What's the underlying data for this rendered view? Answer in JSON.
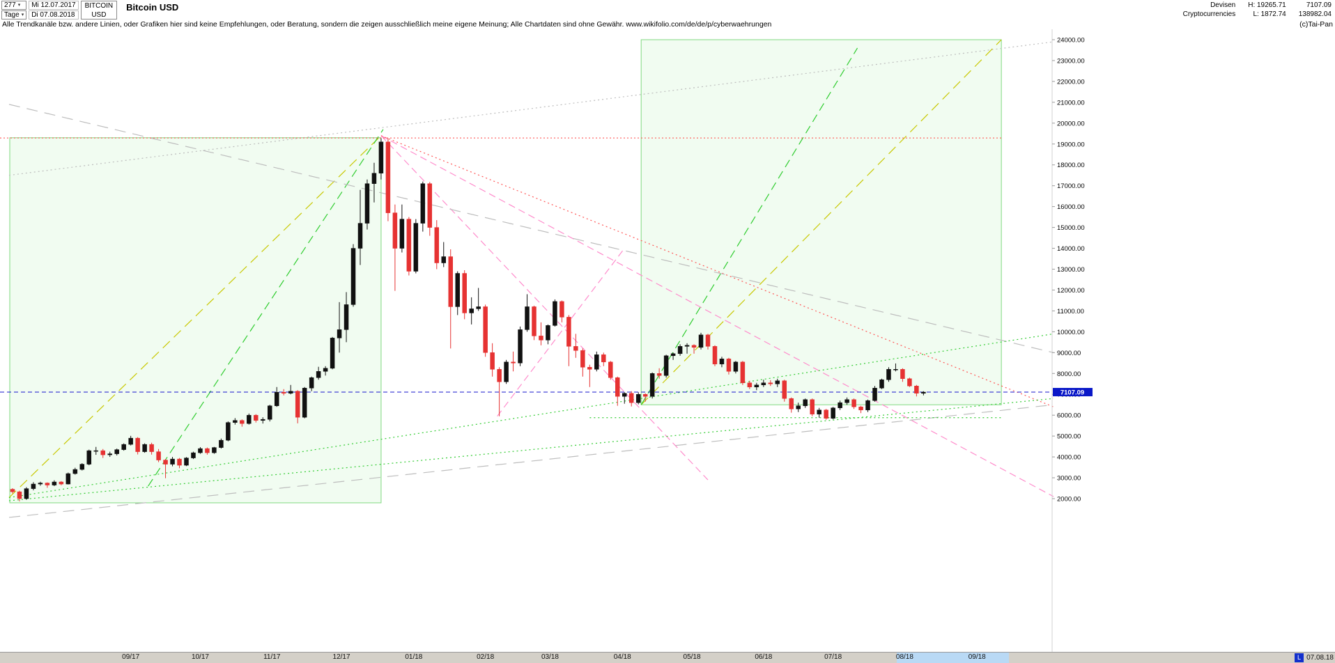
{
  "header": {
    "bars_count": "277",
    "period": "Tage",
    "date_from": "Mi 12.07.2017",
    "date_to": "Di 07.08.2018",
    "symbol": "BITCOIN",
    "currency": "USD",
    "title": "Bitcoin USD",
    "category": "Devisen",
    "subcategory": "Cryptocurrencies",
    "high_label": "H: 19265.71",
    "low_label": "L: 1872.74",
    "last_price": "7107.09",
    "secondary_value": "138982.04",
    "copyright": "(c)Tai-Pan"
  },
  "disclaimer": "Alle Trendkanäle bzw. andere Linien, oder Grafiken hier sind keine Empfehlungen, oder Beratung, sondern die zeigen ausschließlich meine eigene Meinung; Alle Chartdaten sind ohne Gewähr.  www.wikifolio.com/de/de/p/cyberwaehrungen",
  "x_axis": {
    "highlight": {
      "from_i": 127.2,
      "to_i": 143.3
    },
    "last_marker": "L",
    "last_date": "07.08.18"
  },
  "chart_data": {
    "type": "candlestick",
    "title": "Bitcoin USD",
    "high": 19265.71,
    "low": 1872.74,
    "last": 7107.09,
    "ylim": [
      2000,
      24000
    ],
    "y_ticks": [
      24000,
      23000,
      22000,
      21000,
      20000,
      19000,
      18000,
      17000,
      16000,
      15000,
      14000,
      13000,
      12000,
      11000,
      10000,
      9000,
      8000,
      7000,
      6000,
      5000,
      4000,
      3000,
      2000
    ],
    "x_months": [
      {
        "label": "09/17",
        "i": 17.0
      },
      {
        "label": "10/17",
        "i": 27.0
      },
      {
        "label": "11/17",
        "i": 37.3
      },
      {
        "label": "12/17",
        "i": 47.3
      },
      {
        "label": "01/18",
        "i": 57.7
      },
      {
        "label": "02/18",
        "i": 68.0
      },
      {
        "label": "03/18",
        "i": 77.3
      },
      {
        "label": "04/18",
        "i": 87.7
      },
      {
        "label": "05/18",
        "i": 97.7
      },
      {
        "label": "06/18",
        "i": 108.0
      },
      {
        "label": "07/18",
        "i": 118.0
      },
      {
        "label": "08/18",
        "i": 128.3
      },
      {
        "label": "09/18",
        "i": 138.7
      }
    ],
    "colors": {
      "up": "#111111",
      "down": "#e63232",
      "price_line": "#1515cc",
      "resistance": "#ff4444",
      "box_fill": "rgba(80,220,80,0.08)",
      "box_stroke": "#7fd87f",
      "yellow": "#c8c800",
      "green_dash": "#2ecc2e",
      "green_dot": "#33cc33",
      "pink": "#ff8ccc",
      "red_dot": "#ff5555",
      "gray": "#bdbdbd"
    },
    "overlays": {
      "price_line": {
        "value": 7107.09
      },
      "resistance_line": {
        "value": 19290
      },
      "boxes": [
        {
          "i1": -0.4,
          "p1": 19300,
          "i2": 53.0,
          "p2": 1800
        },
        {
          "i1": 90.4,
          "p1": 24000,
          "i2": 142.2,
          "p2": 6500
        }
      ],
      "trendlines": [
        {
          "i1": -0.5,
          "p1": 2050,
          "i2": 53.0,
          "p2": 19400,
          "color": "yellow",
          "dash": "14,8"
        },
        {
          "i1": 90.4,
          "p1": 6500,
          "i2": 142.2,
          "p2": 24000,
          "color": "yellow",
          "dash": "14,8"
        },
        {
          "i1": 19.5,
          "p1": 2600,
          "i2": 53.3,
          "p2": 19700,
          "color": "green_dash",
          "dash": "12,7"
        },
        {
          "i1": 90.4,
          "p1": 6500,
          "i2": 121.5,
          "p2": 23600,
          "color": "green_dash",
          "dash": "12,7"
        },
        {
          "i1": 53.0,
          "p1": 19400,
          "i2": 149.7,
          "p2": 2100,
          "color": "pink",
          "dash": "10,6"
        },
        {
          "i1": 53.0,
          "p1": 19400,
          "i2": 100.0,
          "p2": 2900,
          "color": "pink",
          "dash": "10,6"
        },
        {
          "i1": 69.7,
          "p1": 5950,
          "i2": 88.0,
          "p2": 14000,
          "color": "pink",
          "dash": "10,6"
        },
        {
          "i1": 53.0,
          "p1": 19400,
          "i2": 149.7,
          "p2": 6400,
          "color": "red_dot",
          "dash": "2,4"
        },
        {
          "i1": -0.5,
          "p1": 20900,
          "i2": 149.7,
          "p2": 9000,
          "color": "gray",
          "dash": "16,10"
        },
        {
          "i1": -0.5,
          "p1": 1100,
          "i2": 149.7,
          "p2": 6500,
          "color": "gray",
          "dash": "16,10"
        },
        {
          "i1": -0.5,
          "p1": 17500,
          "i2": 149.7,
          "p2": 23900,
          "color": "gray",
          "dash": "2,4"
        },
        {
          "i1": -0.5,
          "p1": 2050,
          "i2": 149.7,
          "p2": 9900,
          "color": "green_dot",
          "dash": "2,4"
        },
        {
          "i1": -0.5,
          "p1": 1900,
          "i2": 149.7,
          "p2": 6800,
          "color": "green_dot",
          "dash": "2,4"
        },
        {
          "i1": 83.0,
          "p1": 5880,
          "i2": 142.2,
          "p2": 5880,
          "color": "green_dot",
          "dash": "2,4"
        }
      ]
    },
    "candles": [
      [
        2450,
        2500,
        2250,
        2330
      ],
      [
        2330,
        2380,
        1872,
        2000
      ],
      [
        2000,
        2550,
        1950,
        2480
      ],
      [
        2480,
        2790,
        2400,
        2700
      ],
      [
        2700,
        2810,
        2620,
        2750
      ],
      [
        2750,
        2780,
        2520,
        2650
      ],
      [
        2650,
        2880,
        2600,
        2800
      ],
      [
        2800,
        2840,
        2640,
        2700
      ],
      [
        2700,
        3250,
        2680,
        3200
      ],
      [
        3200,
        3480,
        3150,
        3400
      ],
      [
        3400,
        3700,
        3350,
        3650
      ],
      [
        3650,
        4350,
        3600,
        4300
      ],
      [
        4300,
        4480,
        4100,
        4300
      ],
      [
        4300,
        4380,
        3950,
        4100
      ],
      [
        4100,
        4250,
        4000,
        4150
      ],
      [
        4150,
        4400,
        4070,
        4350
      ],
      [
        4350,
        4650,
        4300,
        4600
      ],
      [
        4600,
        5010,
        4550,
        4900
      ],
      [
        4900,
        4950,
        4120,
        4250
      ],
      [
        4250,
        4650,
        4200,
        4600
      ],
      [
        4600,
        4680,
        4110,
        4250
      ],
      [
        4250,
        4380,
        3750,
        3850
      ],
      [
        3850,
        3900,
        2980,
        3650
      ],
      [
        3650,
        4000,
        3550,
        3900
      ],
      [
        3900,
        3950,
        3460,
        3600
      ],
      [
        3600,
        3990,
        3560,
        3950
      ],
      [
        3950,
        4250,
        3900,
        4200
      ],
      [
        4200,
        4470,
        4150,
        4400
      ],
      [
        4400,
        4450,
        4110,
        4200
      ],
      [
        4200,
        4480,
        4150,
        4450
      ],
      [
        4450,
        4880,
        4400,
        4800
      ],
      [
        4800,
        5700,
        4750,
        5650
      ],
      [
        5650,
        5860,
        5550,
        5750
      ],
      [
        5750,
        5800,
        5450,
        5600
      ],
      [
        5600,
        6080,
        5550,
        6000
      ],
      [
        6000,
        6050,
        5650,
        5750
      ],
      [
        5750,
        5900,
        5600,
        5800
      ],
      [
        5800,
        6500,
        5700,
        6450
      ],
      [
        6450,
        7350,
        6400,
        7100
      ],
      [
        7100,
        7250,
        6950,
        7050
      ],
      [
        7050,
        7450,
        7000,
        7150
      ],
      [
        7150,
        7200,
        5610,
        5900
      ],
      [
        5900,
        7350,
        5850,
        7300
      ],
      [
        7300,
        7850,
        7150,
        7800
      ],
      [
        7800,
        8320,
        7700,
        8100
      ],
      [
        8100,
        8350,
        7900,
        8250
      ],
      [
        8250,
        9750,
        8200,
        9700
      ],
      [
        9700,
        11420,
        9000,
        10100
      ],
      [
        10100,
        11900,
        9500,
        11300
      ],
      [
        11300,
        14200,
        11200,
        14000
      ],
      [
        14000,
        16800,
        13200,
        15200
      ],
      [
        15200,
        17300,
        14900,
        17100
      ],
      [
        17100,
        18100,
        16200,
        17600
      ],
      [
        17600,
        19270,
        17300,
        19100
      ],
      [
        19100,
        19270,
        15300,
        15700
      ],
      [
        15700,
        16100,
        11960,
        14000
      ],
      [
        14000,
        16100,
        13800,
        15400
      ],
      [
        15400,
        15500,
        12700,
        12900
      ],
      [
        12900,
        15400,
        12800,
        15200
      ],
      [
        15200,
        17200,
        14800,
        17100
      ],
      [
        17100,
        17180,
        14600,
        15000
      ],
      [
        15000,
        15350,
        13000,
        13300
      ],
      [
        13300,
        14300,
        13100,
        13600
      ],
      [
        13600,
        13950,
        9200,
        11200
      ],
      [
        11200,
        12900,
        10800,
        12800
      ],
      [
        12800,
        12950,
        10600,
        10900
      ],
      [
        10900,
        11650,
        10350,
        11100
      ],
      [
        11100,
        12100,
        11000,
        11200
      ],
      [
        11200,
        11300,
        8800,
        9000
      ],
      [
        9000,
        9450,
        7850,
        8200
      ],
      [
        8200,
        8300,
        5950,
        7600
      ],
      [
        7600,
        8650,
        7500,
        8550
      ],
      [
        8550,
        9050,
        8100,
        8500
      ],
      [
        8500,
        10250,
        8350,
        10100
      ],
      [
        10100,
        11800,
        10000,
        11200
      ],
      [
        11200,
        11250,
        9600,
        9800
      ],
      [
        9800,
        10450,
        9350,
        9600
      ],
      [
        9600,
        10350,
        9400,
        10300
      ],
      [
        10300,
        11550,
        10250,
        11450
      ],
      [
        11450,
        11500,
        10450,
        10700
      ],
      [
        10700,
        10800,
        8350,
        9300
      ],
      [
        9300,
        9900,
        8750,
        9100
      ],
      [
        9100,
        9200,
        7850,
        8300
      ],
      [
        8300,
        8420,
        7350,
        8200
      ],
      [
        8200,
        9050,
        8100,
        8900
      ],
      [
        8900,
        9000,
        8350,
        8550
      ],
      [
        8550,
        8600,
        7700,
        7800
      ],
      [
        7800,
        7850,
        6450,
        6900
      ],
      [
        6900,
        7100,
        6550,
        7050
      ],
      [
        7050,
        7150,
        6420,
        6600
      ],
      [
        6600,
        7100,
        6520,
        7000
      ],
      [
        7000,
        7050,
        6650,
        6900
      ],
      [
        6900,
        8050,
        6800,
        8000
      ],
      [
        8000,
        8250,
        7750,
        7900
      ],
      [
        7900,
        8900,
        7800,
        8850
      ],
      [
        8850,
        9000,
        8650,
        8950
      ],
      [
        8950,
        9400,
        8850,
        9300
      ],
      [
        9300,
        9450,
        8950,
        9350
      ],
      [
        9350,
        9400,
        8950,
        9250
      ],
      [
        9250,
        9950,
        9150,
        9850
      ],
      [
        9850,
        9900,
        9150,
        9300
      ],
      [
        9300,
        9350,
        8350,
        8450
      ],
      [
        8450,
        8800,
        8300,
        8700
      ],
      [
        8700,
        8750,
        7950,
        8100
      ],
      [
        8100,
        8600,
        8000,
        8550
      ],
      [
        8550,
        8600,
        7450,
        7550
      ],
      [
        7550,
        7650,
        7250,
        7350
      ],
      [
        7350,
        7550,
        7200,
        7450
      ],
      [
        7450,
        7700,
        7350,
        7550
      ],
      [
        7550,
        7680,
        7400,
        7500
      ],
      [
        7500,
        7750,
        7350,
        7650
      ],
      [
        7650,
        7700,
        6650,
        6800
      ],
      [
        6800,
        6850,
        6120,
        6300
      ],
      [
        6300,
        6600,
        6150,
        6450
      ],
      [
        6450,
        6800,
        6350,
        6750
      ],
      [
        6750,
        6800,
        5950,
        6050
      ],
      [
        6050,
        6350,
        5880,
        6250
      ],
      [
        6250,
        6300,
        5780,
        5850
      ],
      [
        5850,
        6400,
        5800,
        6350
      ],
      [
        6350,
        6700,
        6250,
        6600
      ],
      [
        6600,
        6850,
        6500,
        6750
      ],
      [
        6750,
        6800,
        6300,
        6400
      ],
      [
        6400,
        6450,
        6100,
        6250
      ],
      [
        6250,
        6750,
        6150,
        6700
      ],
      [
        6700,
        7400,
        6650,
        7300
      ],
      [
        7300,
        7750,
        7250,
        7700
      ],
      [
        7700,
        8300,
        7600,
        8200
      ],
      [
        8200,
        8480,
        8100,
        8200
      ],
      [
        8200,
        8250,
        7600,
        7750
      ],
      [
        7750,
        7800,
        7350,
        7400
      ],
      [
        7400,
        7450,
        6900,
        7050
      ],
      [
        7050,
        7150,
        6950,
        7107
      ]
    ]
  }
}
